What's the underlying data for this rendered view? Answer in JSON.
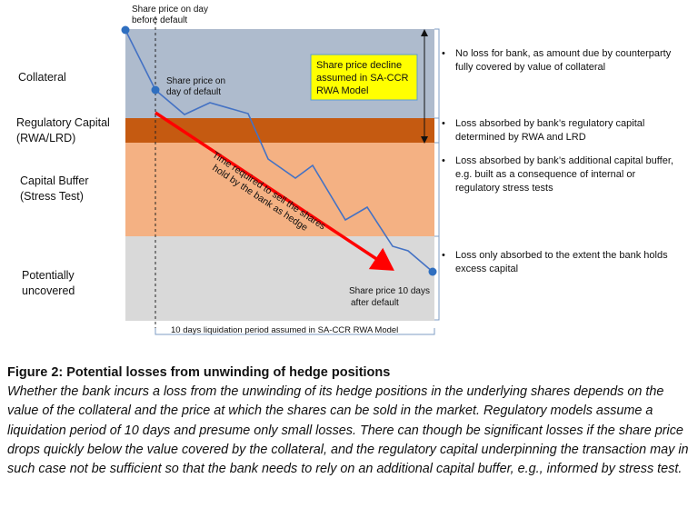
{
  "figure": {
    "bands": [
      {
        "label_line1": "Collateral",
        "label_line2": "",
        "color": "#aebbcd",
        "note_line1": "No loss for bank, as amount due by counterparty",
        "note_line2": "fully covered by value of collateral",
        "note_line3": ""
      },
      {
        "label_line1": "Regulatory Capital",
        "label_line2": "(RWA/LRD)",
        "color": "#c55a11",
        "note_line1": "Loss absorbed by bank’s regulatory capital",
        "note_line2": "determined by RWA and LRD",
        "note_line3": ""
      },
      {
        "label_line1": "Capital Buffer",
        "label_line2": "(Stress Test)",
        "color": "#f4b183",
        "note_line1": "Loss absorbed by bank’s additional capital buffer,",
        "note_line2": "e.g. built as a consequence of internal or",
        "note_line3": "regulatory stress tests"
      },
      {
        "label_line1": "Potentially",
        "label_line2": "uncovered",
        "color": "#d9d9d9",
        "note_line1": "Loss only absorbed to the extent the bank holds",
        "note_line2": "excess capital",
        "note_line3": ""
      }
    ],
    "annotations": {
      "before_default_line1": "Share price on day",
      "before_default_line2": "before default",
      "day_of_default_line1": "Share price on",
      "day_of_default_line2": "day of default",
      "after_10_days_line1": "Share price 10 days",
      "after_10_days_line2": "after default",
      "callout_line1": "Share price decline",
      "callout_line2": "assumed in SA-CCR",
      "callout_line3": "RWA Model",
      "arrow_line1": "Time required to sell the shares",
      "arrow_line2": "hold by the bank as hedge",
      "period_label": "10 days liquidation period assumed in SA-CCR RWA Model"
    },
    "colors": {
      "price_line": "#4472c4",
      "arrow": "#ff0000",
      "callout_fill": "#ffff00",
      "callout_border": "#5b9bd5"
    },
    "bullet": "•"
  },
  "caption": {
    "title": "Figure 2: Potential losses from unwinding of hedge positions",
    "body": "Whether the bank incurs a loss from the unwinding of its hedge positions in the underlying shares depends on the value of the collateral and the price at which the shares can be sold in the market. Regulatory models assume a liquidation period of 10 days and presume only small losses. There can though be significant losses if the share price drops quickly below the value covered by the collateral, and the regulatory capital underpinning the transaction may in such case not be sufficient so that the bank needs to rely on an additional capital buffer, e.g., informed by stress test."
  }
}
